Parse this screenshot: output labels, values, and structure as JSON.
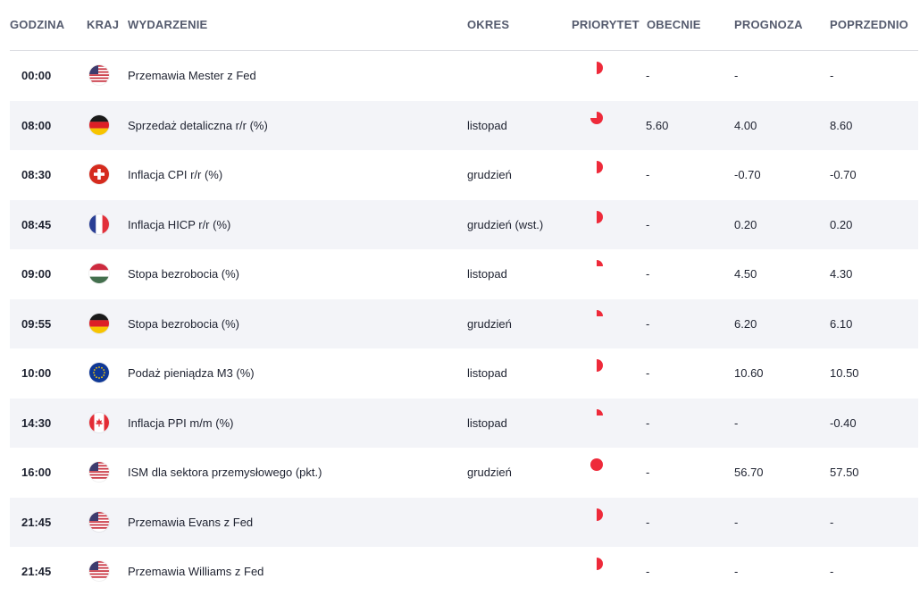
{
  "headers": {
    "time": "GODZINA",
    "country": "KRAJ",
    "event": "WYDARZENIE",
    "period": "OKRES",
    "priority": "PRIORYTET",
    "actual": "OBECNIE",
    "forecast": "PROGNOZA",
    "previous": "POPRZEDNIO"
  },
  "colors": {
    "priority": "#ee2a3a",
    "row_alt": "#f3f4f8"
  },
  "rows": [
    {
      "time": "00:00",
      "flag": "us-flag-icon",
      "event": "Przemawia Mester z Fed",
      "period": "",
      "priority": 0.5,
      "actual": "-",
      "forecast": "-",
      "previous": "-"
    },
    {
      "time": "08:00",
      "flag": "germany-flag-icon",
      "event": "Sprzedaż detaliczna r/r (%)",
      "period": "listopad",
      "priority": 0.75,
      "actual": "5.60",
      "forecast": "4.00",
      "previous": "8.60"
    },
    {
      "time": "08:30",
      "flag": "switzerland-flag-icon",
      "event": "Inflacja CPI r/r (%)",
      "period": "grudzień",
      "priority": 0.5,
      "actual": "-",
      "forecast": "-0.70",
      "previous": "-0.70"
    },
    {
      "time": "08:45",
      "flag": "france-flag-icon",
      "event": "Inflacja HICP r/r (%)",
      "period": "grudzień (wst.)",
      "priority": 0.5,
      "actual": "-",
      "forecast": "0.20",
      "previous": "0.20"
    },
    {
      "time": "09:00",
      "flag": "hungary-flag-icon",
      "event": "Stopa bezrobocia (%)",
      "period": "listopad",
      "priority": 0.25,
      "actual": "-",
      "forecast": "4.50",
      "previous": "4.30"
    },
    {
      "time": "09:55",
      "flag": "germany-flag-icon",
      "event": "Stopa bezrobocia (%)",
      "period": "grudzień",
      "priority": 0.25,
      "actual": "-",
      "forecast": "6.20",
      "previous": "6.10"
    },
    {
      "time": "10:00",
      "flag": "eu-flag-icon",
      "event": "Podaż pieniądza M3 (%)",
      "period": "listopad",
      "priority": 0.5,
      "actual": "-",
      "forecast": "10.60",
      "previous": "10.50"
    },
    {
      "time": "14:30",
      "flag": "canada-flag-icon",
      "event": "Inflacja PPI m/m (%)",
      "period": "listopad",
      "priority": 0.25,
      "actual": "-",
      "forecast": "-",
      "previous": "-0.40"
    },
    {
      "time": "16:00",
      "flag": "us-flag-icon",
      "event": "ISM dla sektora przemysłowego (pkt.)",
      "period": "grudzień",
      "priority": 1.0,
      "actual": "-",
      "forecast": "56.70",
      "previous": "57.50"
    },
    {
      "time": "21:45",
      "flag": "us-flag-icon",
      "event": "Przemawia Evans z Fed",
      "period": "",
      "priority": 0.5,
      "actual": "-",
      "forecast": "-",
      "previous": "-"
    },
    {
      "time": "21:45",
      "flag": "us-flag-icon",
      "event": "Przemawia Williams z Fed",
      "period": "",
      "priority": 0.5,
      "actual": "-",
      "forecast": "-",
      "previous": "-"
    }
  ]
}
